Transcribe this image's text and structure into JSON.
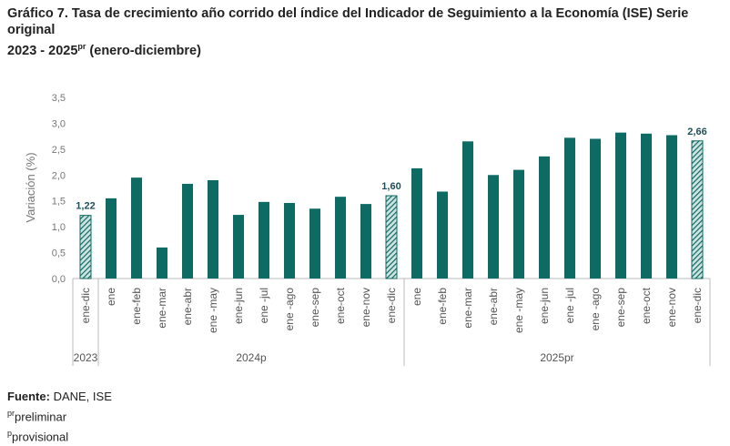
{
  "chart_data": {
    "type": "bar",
    "title": "Gráfico 7. Tasa de crecimiento año corrido del índice del Indicador de Seguimiento a la Economía (ISE) Serie original",
    "subtitle": {
      "text": "2023 - 2025",
      "sup": "pr",
      "rest": " (enero-diciembre)"
    },
    "y_label": "Variación (%)",
    "categories": [
      "ene-dic",
      "ene",
      "ene-feb",
      "ene-mar",
      "ene-abr",
      "ene -may",
      "ene-jun",
      "ene -jul",
      "ene -ago",
      "ene-sep",
      "ene-oct",
      "ene-nov",
      "ene-dic",
      "ene",
      "ene-feb",
      "ene-mar",
      "ene-abr",
      "ene -may",
      "ene-jun",
      "ene -jul",
      "ene -ago",
      "ene-sep",
      "ene-oct",
      "ene-nov",
      "ene-dic"
    ],
    "values": [
      1.22,
      1.55,
      1.95,
      0.6,
      1.83,
      1.9,
      1.23,
      1.48,
      1.46,
      1.35,
      1.58,
      1.44,
      1.6,
      2.13,
      1.68,
      2.65,
      2.0,
      2.1,
      2.36,
      2.72,
      2.7,
      2.82,
      2.8,
      2.77,
      2.66
    ],
    "value_labels": [
      "1,22",
      null,
      null,
      null,
      null,
      null,
      null,
      null,
      null,
      null,
      null,
      null,
      "1,60",
      null,
      null,
      null,
      null,
      null,
      null,
      null,
      null,
      null,
      null,
      null,
      "2,66"
    ],
    "hatched": [
      0,
      12,
      24
    ],
    "groups": [
      {
        "label": "2023",
        "count": 1
      },
      {
        "label": "2024p",
        "count": 12
      },
      {
        "label": "2025pr",
        "count": 12
      }
    ],
    "color": "#0d6b63",
    "ylim": [
      0,
      3.5
    ],
    "yticks": [
      {
        "value": 0,
        "label": "0,0"
      },
      {
        "value": 0.5,
        "label": "0,5"
      },
      {
        "value": 1,
        "label": "1,0"
      },
      {
        "value": 1.5,
        "label": "1,5"
      },
      {
        "value": 2,
        "label": "2,0"
      },
      {
        "value": 2.5,
        "label": "2,5"
      },
      {
        "value": 3,
        "label": "3,0"
      },
      {
        "value": 3.5,
        "label": "3,5"
      }
    ],
    "grid": false
  },
  "footer": {
    "source_label": "Fuente:",
    "source": " DANE, ISE",
    "notes": [
      {
        "sup": "pr",
        "text": "preliminar"
      },
      {
        "sup": "p",
        "text": "provisional"
      }
    ]
  }
}
